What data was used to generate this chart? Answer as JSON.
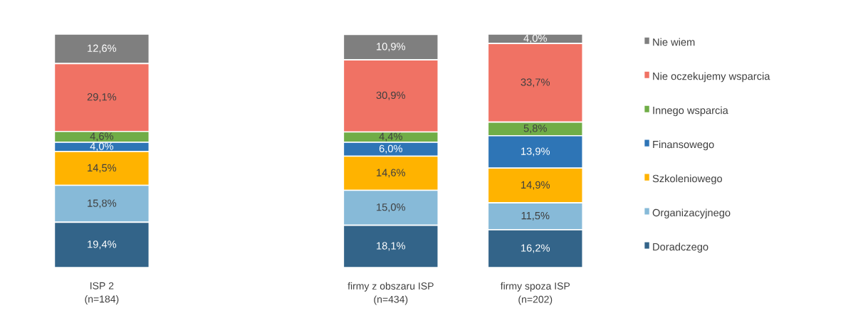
{
  "chart_data": {
    "type": "bar",
    "stacked": true,
    "legend": "right",
    "tick_labels": "x",
    "categories": [
      "ISP 2\n(n=184)",
      null,
      "firmy z obszaru ISP\n(n=434)",
      "firmy spoza ISP\n(n=202)"
    ],
    "series": [
      {
        "name": "Doradczego",
        "color": "#336489",
        "values": [
          19.4,
          null,
          18.1,
          16.2
        ],
        "value_labels": [
          "19,4%",
          null,
          "18,1%",
          "16,2%"
        ]
      },
      {
        "name": "Organizacyjnego",
        "color": "#87bad8",
        "values": [
          15.8,
          null,
          15.0,
          11.5
        ],
        "value_labels": [
          "15,8%",
          null,
          "15,0%",
          "11,5%"
        ]
      },
      {
        "name": "Szkoleniowego",
        "color": "#ffb300",
        "values": [
          14.5,
          null,
          14.6,
          14.9
        ],
        "value_labels": [
          "14,5%",
          null,
          "14,6%",
          "14,9%"
        ]
      },
      {
        "name": "Finansowego",
        "color": "#2e75b6",
        "values": [
          4.0,
          null,
          6.0,
          13.9
        ],
        "value_labels": [
          "4,0%",
          null,
          "6,0%",
          "13,9%"
        ]
      },
      {
        "name": "Innego wsparcia",
        "color": "#70ad47",
        "values": [
          4.6,
          null,
          4.4,
          5.8
        ],
        "value_labels": [
          "4,6%",
          null,
          "4,4%",
          "5,8%"
        ]
      },
      {
        "name": "Nie oczekujemy wsparcia",
        "color": "#f07264",
        "values": [
          29.1,
          null,
          30.9,
          33.7
        ],
        "value_labels": [
          "29,1%",
          null,
          "30,9%",
          "33,7%"
        ]
      },
      {
        "name": "Nie wiem",
        "color": "#7f7f7f",
        "values": [
          12.6,
          null,
          10.9,
          4.0
        ],
        "value_labels": [
          "12,6%",
          null,
          "10,9%",
          "4,0%"
        ]
      }
    ]
  }
}
